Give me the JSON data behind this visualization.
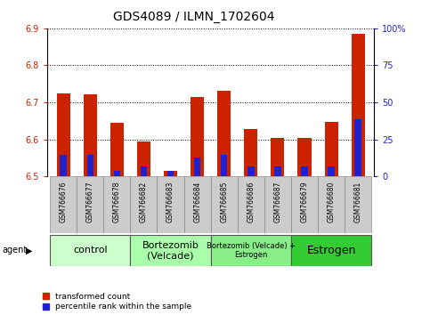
{
  "title": "GDS4089 / ILMN_1702604",
  "samples": [
    "GSM766676",
    "GSM766677",
    "GSM766678",
    "GSM766682",
    "GSM766683",
    "GSM766684",
    "GSM766685",
    "GSM766686",
    "GSM766687",
    "GSM766679",
    "GSM766680",
    "GSM766681"
  ],
  "transformed_count": [
    6.725,
    6.722,
    6.645,
    6.595,
    6.515,
    6.715,
    6.732,
    6.628,
    6.605,
    6.605,
    6.648,
    6.885
  ],
  "percentile_rank": [
    14.5,
    14.5,
    3.5,
    6.5,
    3.5,
    12.5,
    14.5,
    6.5,
    6.5,
    6.5,
    6.5,
    38.5
  ],
  "ylim_left": [
    6.5,
    6.9
  ],
  "ylim_right": [
    0,
    100
  ],
  "yticks_left": [
    6.5,
    6.6,
    6.7,
    6.8,
    6.9
  ],
  "yticks_right": [
    0,
    25,
    50,
    75,
    100
  ],
  "ytick_labels_right": [
    "0",
    "25",
    "50",
    "75",
    "100%"
  ],
  "groups": [
    {
      "label": "control",
      "indices": [
        0,
        1,
        2
      ],
      "color": "#ccffcc",
      "fontsize": 8
    },
    {
      "label": "Bortezomib\n(Velcade)",
      "indices": [
        3,
        4,
        5
      ],
      "color": "#aaffaa",
      "fontsize": 8
    },
    {
      "label": "Bortezomib (Velcade) +\nEstrogen",
      "indices": [
        6,
        7,
        8
      ],
      "color": "#88ee88",
      "fontsize": 6
    },
    {
      "label": "Estrogen",
      "indices": [
        9,
        10,
        11
      ],
      "color": "#33cc33",
      "fontsize": 9
    }
  ],
  "bar_width": 0.5,
  "bar_color_red": "#cc2200",
  "bar_color_blue": "#2222cc",
  "baseline": 6.5,
  "legend_label_red": "transformed count",
  "legend_label_blue": "percentile rank within the sample",
  "agent_label": "agent",
  "left_tick_color": "#cc2200",
  "right_tick_color": "#2222cc",
  "tick_label_area_color": "#cccccc",
  "title_fontsize": 10,
  "tick_fontsize": 7,
  "sample_fontsize": 5.5,
  "group_fontsize": 8
}
